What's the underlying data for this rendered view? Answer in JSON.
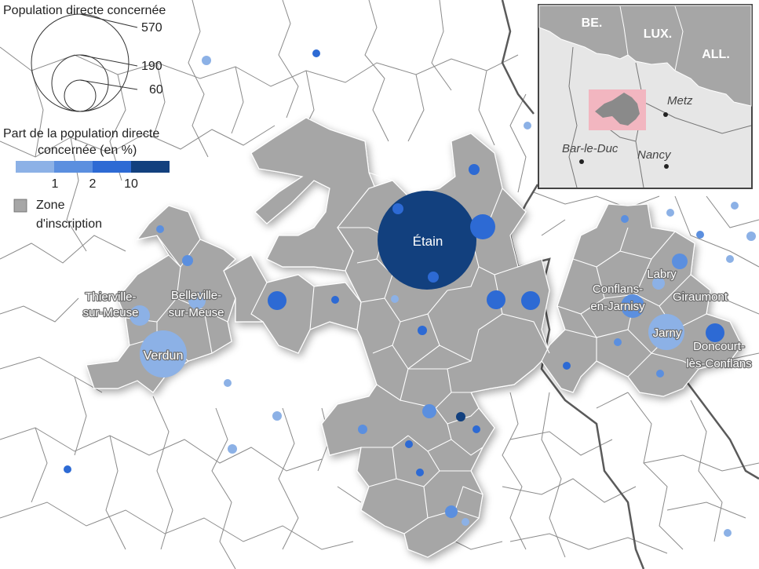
{
  "legend": {
    "size_title": "Population directe concernée",
    "size_values": [
      "570",
      "190",
      "60"
    ],
    "share_title_line1": "Part de la population directe",
    "share_title_line2": "concernée (en %)",
    "share_ticks": [
      "1",
      "2",
      "10"
    ],
    "share_colors": [
      "#8cb1e6",
      "#5b8fdf",
      "#2d6ad4",
      "#12407e"
    ],
    "zone_label_line1": "Zone",
    "zone_label_line2": "d'inscription",
    "zone_color": "#a6a6a6"
  },
  "places": {
    "etain": "Étain",
    "verdun": "Verdun",
    "belleville_1": "Belleville-",
    "belleville_2": "sur-Meuse",
    "thierville_1": "Thierville-",
    "thierville_2": "sur-Meuse",
    "conflans_1": "Conflans-",
    "conflans_2": "en-Jarnisy",
    "labry": "Labry",
    "giraumont": "Giraumont",
    "jarny": "Jarny",
    "doncourt_1": "Doncourt-",
    "doncourt_2": "lès-Conflans"
  },
  "inset": {
    "countries": [
      "BE.",
      "LUX.",
      "ALL."
    ],
    "cities": [
      "Metz",
      "Bar-le-Duc",
      "Nancy"
    ],
    "highlight_color": "#f2b6c0"
  }
}
